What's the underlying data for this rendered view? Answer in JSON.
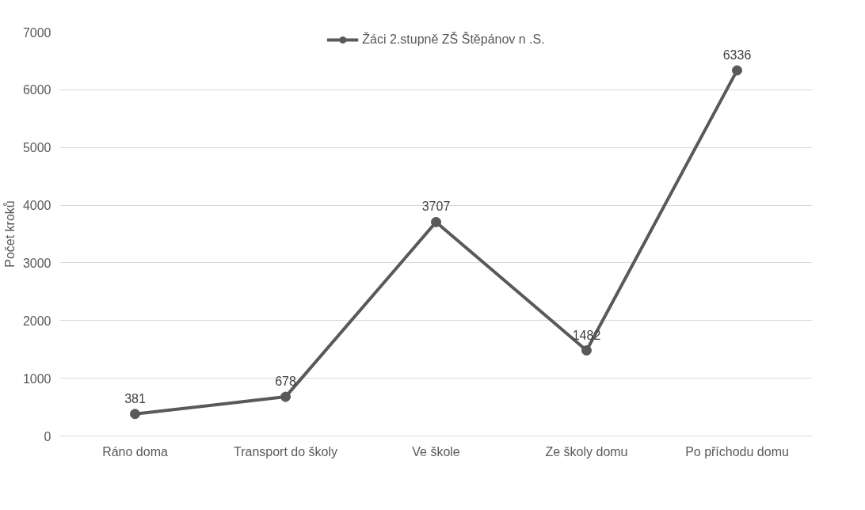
{
  "chart_data": {
    "type": "line",
    "ylabel": "Počet kroků",
    "categories": [
      "Ráno doma",
      "Transport do školy",
      "Ve škole",
      "Ze školy domu",
      "Po příchodu domu"
    ],
    "series": [
      {
        "name": "Žáci 2.stupně ZŠ Štěpánov n .S.",
        "color": "#595959",
        "values": [
          381,
          678,
          3707,
          1482,
          6336
        ]
      }
    ],
    "ylim": [
      0,
      7000
    ],
    "yticks": [
      0,
      1000,
      2000,
      3000,
      4000,
      5000,
      6000,
      7000
    ],
    "grid": "y",
    "legend": "top",
    "marker": "circle",
    "line_style": "solid",
    "data_labels": true
  }
}
